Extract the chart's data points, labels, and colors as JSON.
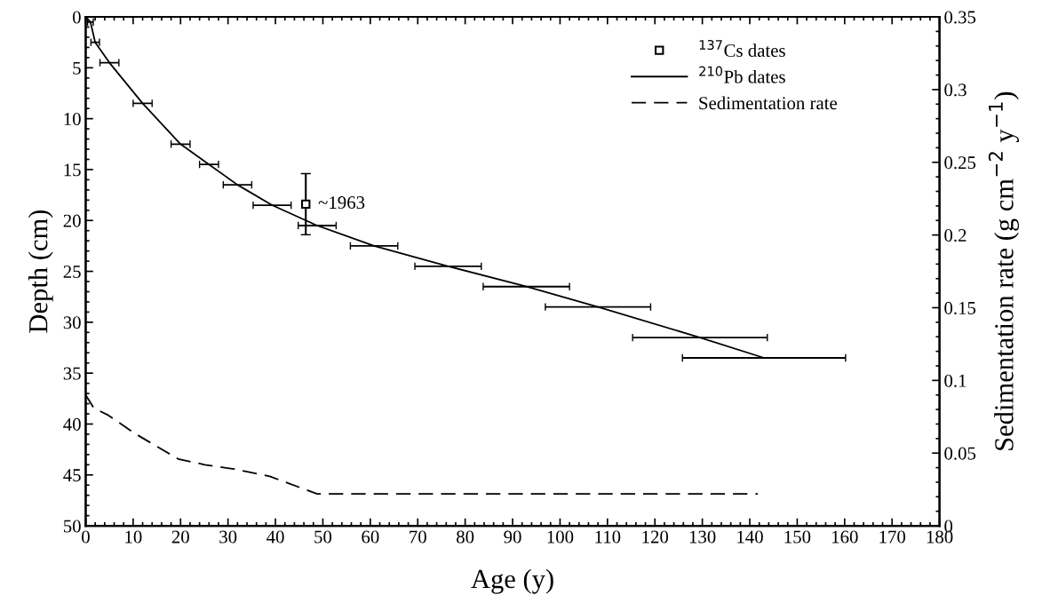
{
  "chart_data": {
    "type": "line",
    "xlabel": "Age (y)",
    "ylabel": "Depth (cm)",
    "y2label": "Sedimentation rate (g cm$^{−2}$ y$^{−1}$)",
    "xlim": [
      0,
      180
    ],
    "xticks": [
      0,
      10,
      20,
      30,
      40,
      50,
      60,
      70,
      80,
      90,
      100,
      110,
      120,
      130,
      140,
      150,
      160,
      170,
      180
    ],
    "ylim": [
      50,
      0
    ],
    "yticks": [
      0,
      5,
      10,
      15,
      20,
      25,
      30,
      35,
      40,
      45,
      50
    ],
    "y2lim": [
      0,
      0.35
    ],
    "y2ticks": [
      0,
      0.05,
      0.1,
      0.15,
      0.2,
      0.25,
      0.3,
      0.35
    ],
    "legend": "top right",
    "grid": false,
    "annotations": [
      {
        "text": "~1963",
        "x": 46.4,
        "y": 18.4
      }
    ],
    "series": [
      {
        "name": "$^{137}$Cs dates",
        "type": "scatter",
        "marker": "square",
        "color": "#000000",
        "x": [
          46.4
        ],
        "values": [
          18.4
        ],
        "errors": [
          3
        ]
      },
      {
        "name": "$^{210}$Pb dates",
        "marker": "none",
        "line_style": "solid",
        "color": "#000000",
        "x": [
          0,
          1,
          2,
          5,
          12,
          20,
          26,
          32,
          39.3,
          48.8,
          60.8,
          76.4,
          92.9,
          108,
          129.5,
          143
        ],
        "values": [
          0,
          0.5,
          2.5,
          4.5,
          8.5,
          12.5,
          14.5,
          16.5,
          18.5,
          20.5,
          22.5,
          24.5,
          26.5,
          28.5,
          31.5,
          33.5
        ],
        "xerrors": [
          null,
          0.6,
          0.9,
          2,
          2,
          2,
          2,
          3,
          4,
          4,
          5,
          7,
          9.1,
          11.1,
          14.2,
          17.2
        ]
      },
      {
        "name": "Sedimentation rate",
        "type": "line",
        "axis": "y2",
        "marker": "none",
        "line_style": "dashed",
        "color": "#000000",
        "x": [
          0,
          1.7,
          4.8,
          10.1,
          19.5,
          25.1,
          31.3,
          38.8,
          48.8,
          141.7
        ],
        "values": [
          0.09,
          0.081,
          0.076,
          0.064,
          0.046,
          0.042,
          0.039,
          0.034,
          0.022,
          0.022
        ]
      }
    ]
  }
}
